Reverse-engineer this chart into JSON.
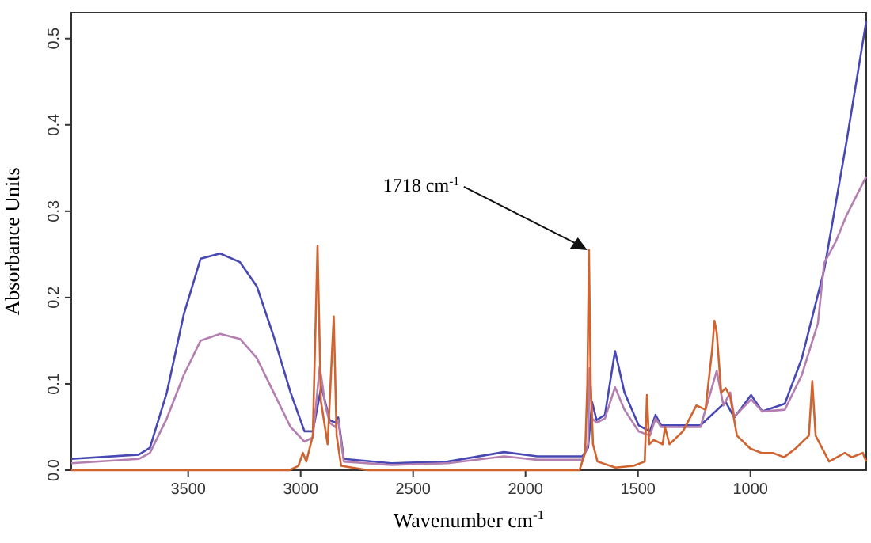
{
  "chart_data": {
    "type": "line",
    "xlabel": "Wavenumber cm$^{-1}$",
    "ylabel": "Absorbance Units",
    "xlim": [
      4020,
      485
    ],
    "ylim": [
      0,
      0.53
    ],
    "xticks": [
      3500,
      3000,
      2500,
      2000,
      1500,
      1000
    ],
    "yticks": [
      {
        "value": 0,
        "label": "0.0"
      },
      {
        "value": 0.1,
        "label": "0.1"
      },
      {
        "value": 0.2,
        "label": "0.2"
      },
      {
        "value": 0.3,
        "label": "0.3"
      },
      {
        "value": 0.4,
        "label": "0.4"
      },
      {
        "value": 0.5,
        "label": "0.5"
      }
    ],
    "grid": false,
    "marker": "none",
    "line_style": "solid",
    "annotations": [
      {
        "text": "1718 cm$^{-1}$",
        "x": 1718,
        "y": 0.255
      }
    ],
    "series": [
      {
        "color": "#4848b4",
        "x": [
          4020,
          3720,
          3670,
          3595,
          3520,
          3445,
          3358,
          3270,
          3195,
          3120,
          3045,
          2983,
          2946,
          2908,
          2871,
          2846,
          2833,
          2808,
          2596,
          2346,
          2096,
          1947,
          1747,
          1722,
          1704,
          1684,
          1647,
          1602,
          1560,
          1497,
          1447,
          1422,
          1397,
          1222,
          1110,
          1072,
          997,
          947,
          847,
          772,
          672,
          573,
          485
        ],
        "values": [
          0.013,
          0.018,
          0.026,
          0.09,
          0.18,
          0.245,
          0.251,
          0.241,
          0.213,
          0.155,
          0.09,
          0.045,
          0.045,
          0.097,
          0.058,
          0.055,
          0.061,
          0.013,
          0.008,
          0.01,
          0.021,
          0.016,
          0.016,
          0.026,
          0.079,
          0.058,
          0.064,
          0.138,
          0.09,
          0.052,
          0.045,
          0.064,
          0.052,
          0.052,
          0.079,
          0.061,
          0.087,
          0.068,
          0.077,
          0.129,
          0.232,
          0.38,
          0.52
        ]
      },
      {
        "color": "#b47eb0",
        "x": [
          4020,
          3720,
          3670,
          3595,
          3520,
          3445,
          3358,
          3270,
          3195,
          3120,
          3045,
          2983,
          2946,
          2915,
          2890,
          2871,
          2846,
          2833,
          2808,
          2596,
          2346,
          2096,
          1947,
          1747,
          1722,
          1715,
          1704,
          1684,
          1647,
          1602,
          1560,
          1497,
          1447,
          1422,
          1397,
          1222,
          1150,
          1120,
          1090,
          1072,
          997,
          947,
          847,
          772,
          700,
          672,
          620,
          573,
          485
        ],
        "values": [
          0.008,
          0.013,
          0.02,
          0.06,
          0.11,
          0.15,
          0.158,
          0.152,
          0.13,
          0.09,
          0.05,
          0.033,
          0.038,
          0.12,
          0.075,
          0.055,
          0.05,
          0.058,
          0.01,
          0.006,
          0.008,
          0.016,
          0.012,
          0.012,
          0.03,
          0.118,
          0.06,
          0.055,
          0.06,
          0.096,
          0.07,
          0.045,
          0.04,
          0.06,
          0.05,
          0.05,
          0.115,
          0.075,
          0.09,
          0.062,
          0.082,
          0.068,
          0.07,
          0.11,
          0.17,
          0.24,
          0.265,
          0.295,
          0.34
        ]
      },
      {
        "color": "#d06430",
        "x": [
          4020,
          3050,
          3010,
          2990,
          2975,
          2946,
          2925,
          2910,
          2880,
          2853,
          2840,
          2820,
          2700,
          1760,
          1735,
          1725,
          1718,
          1710,
          1700,
          1680,
          1600,
          1520,
          1470,
          1460,
          1450,
          1430,
          1390,
          1380,
          1360,
          1300,
          1240,
          1200,
          1170,
          1160,
          1150,
          1130,
          1110,
          1090,
          1060,
          1000,
          950,
          900,
          850,
          800,
          740,
          725,
          710,
          650,
          580,
          550,
          500,
          485
        ],
        "values": [
          0,
          0,
          0.005,
          0.02,
          0.01,
          0.04,
          0.26,
          0.08,
          0.03,
          0.178,
          0.04,
          0.005,
          0,
          0,
          0.02,
          0.1,
          0.255,
          0.1,
          0.03,
          0.01,
          0.003,
          0.005,
          0.01,
          0.087,
          0.03,
          0.035,
          0.03,
          0.05,
          0.03,
          0.045,
          0.075,
          0.07,
          0.14,
          0.173,
          0.16,
          0.09,
          0.095,
          0.085,
          0.04,
          0.025,
          0.02,
          0.02,
          0.015,
          0.025,
          0.04,
          0.103,
          0.04,
          0.01,
          0.02,
          0.015,
          0.02,
          0.01
        ]
      }
    ]
  }
}
